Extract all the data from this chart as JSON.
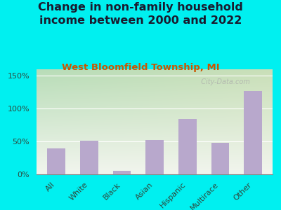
{
  "title": "Change in non-family household\nincome between 2000 and 2022",
  "subtitle": "West Bloomfield Township, MI",
  "categories": [
    "All",
    "White",
    "Black",
    "Asian",
    "Hispanic",
    "Multirace",
    "Other"
  ],
  "values": [
    40,
    51,
    5,
    52,
    84,
    48,
    127
  ],
  "bar_color": "#b8a8cc",
  "background_color": "#00f0f0",
  "title_color": "#1a1a2e",
  "subtitle_color": "#cc5500",
  "tick_label_color": "#2d4a3e",
  "watermark": "  City-Data.com",
  "watermark_color": "#aaaaaa",
  "title_fontsize": 11.5,
  "subtitle_fontsize": 9.5,
  "tick_fontsize": 8,
  "ylim": [
    0,
    160
  ],
  "yticks": [
    0,
    50,
    100,
    150
  ],
  "plot_bg_colors": [
    "#cce8cc",
    "#f0f5e8",
    "#f5f5ee"
  ],
  "grad_top": "#b8ddb8",
  "grad_bottom": "#f2f5ee"
}
